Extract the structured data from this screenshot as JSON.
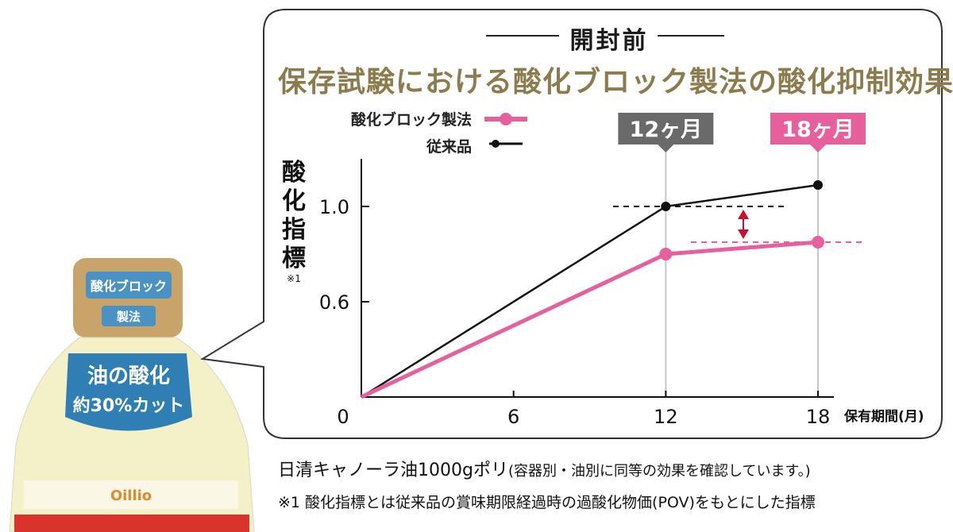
{
  "header": "開封前",
  "chart_data": {
    "type": "line",
    "title": "保存試験における酸化ブロック製法の酸化抑制効果",
    "x": [
      0,
      12,
      18
    ],
    "xticks": [
      "0",
      "6",
      "12",
      "18"
    ],
    "xlabel": "保有期間(月)",
    "ylabel": "酸化指標",
    "ylabel_note": "※1",
    "yticks": [
      "1.0",
      "0.6"
    ],
    "xlim": [
      0,
      18
    ],
    "ylim": [
      0.2,
      1.2
    ],
    "series": [
      {
        "name": "酸化ブロック製法",
        "color": "#e5609c",
        "values": [
          0.2,
          0.8,
          0.85
        ]
      },
      {
        "name": "従来品",
        "color": "#111111",
        "values": [
          0.2,
          1.0,
          1.09
        ]
      }
    ],
    "callouts": [
      {
        "label": "12ヶ月",
        "color": "#6a6a6a"
      },
      {
        "label": "18ヶ月",
        "color": "#e5609c"
      }
    ],
    "grid": false,
    "legend": "top-left"
  },
  "product_caption": {
    "main": "日清キャノーラ油1000gポリ",
    "sub": "(容器別・油別に同等の効果を確認しています。)"
  },
  "footnote": "※1 酸化指標とは従来品の賞味期限経過時の過酸化物価(POV)をもとにした指標",
  "bottle": {
    "cap_text": "酸化ブロック",
    "cap_sub": "製法",
    "label_line1": "油の酸化",
    "label_line2": "約30%カット",
    "brand": "Oillio"
  },
  "colors": {
    "accent": "#e5609c",
    "title": "#8c7b4c",
    "bottle_label": "#2f7fb5"
  }
}
